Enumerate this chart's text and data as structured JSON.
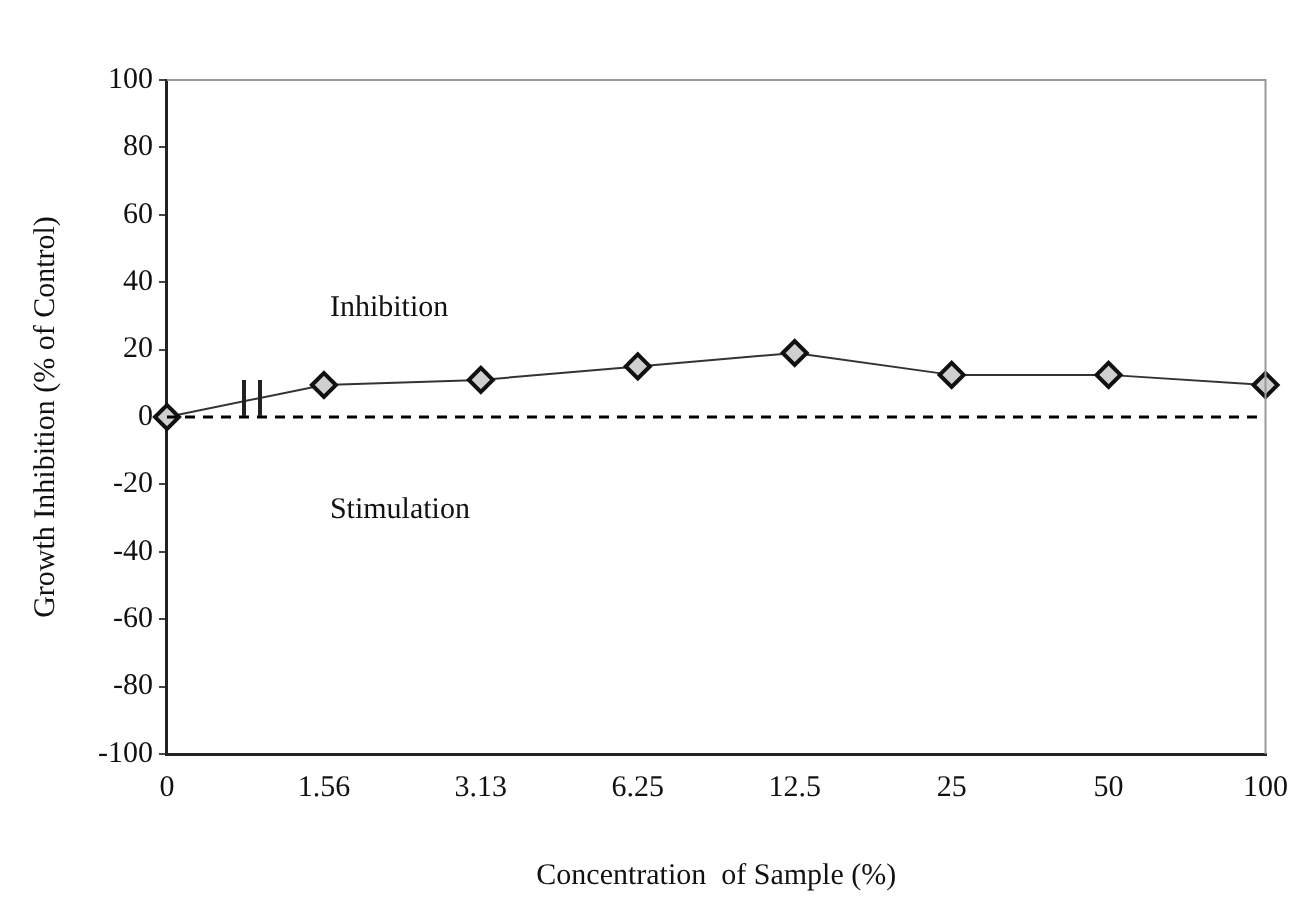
{
  "chart_data": {
    "type": "line",
    "xlabel": "Concentration  of Sample (%)",
    "ylabel": "Growth Inhibition (% of Control)",
    "categories": [
      "0",
      "1.56",
      "3.13",
      "6.25",
      "12.5",
      "25",
      "50",
      "100"
    ],
    "series": [
      {
        "color": "#333333",
        "values": [
          0,
          9.5,
          11,
          15,
          19,
          12.5,
          12.5,
          9.5
        ]
      }
    ],
    "ylim": [
      -100,
      100
    ],
    "yticks": [
      -100,
      -80,
      -60,
      -40,
      -20,
      0,
      20,
      40,
      60,
      80,
      100
    ],
    "grid": false,
    "legend": false,
    "marker": "diamond",
    "line_style": "solid",
    "ref_lines": [
      {
        "axis": "y",
        "value": 0,
        "color": "#000000",
        "line_style": "dashed"
      }
    ],
    "annotations": [
      "Inhibition",
      "Stimulation"
    ]
  }
}
